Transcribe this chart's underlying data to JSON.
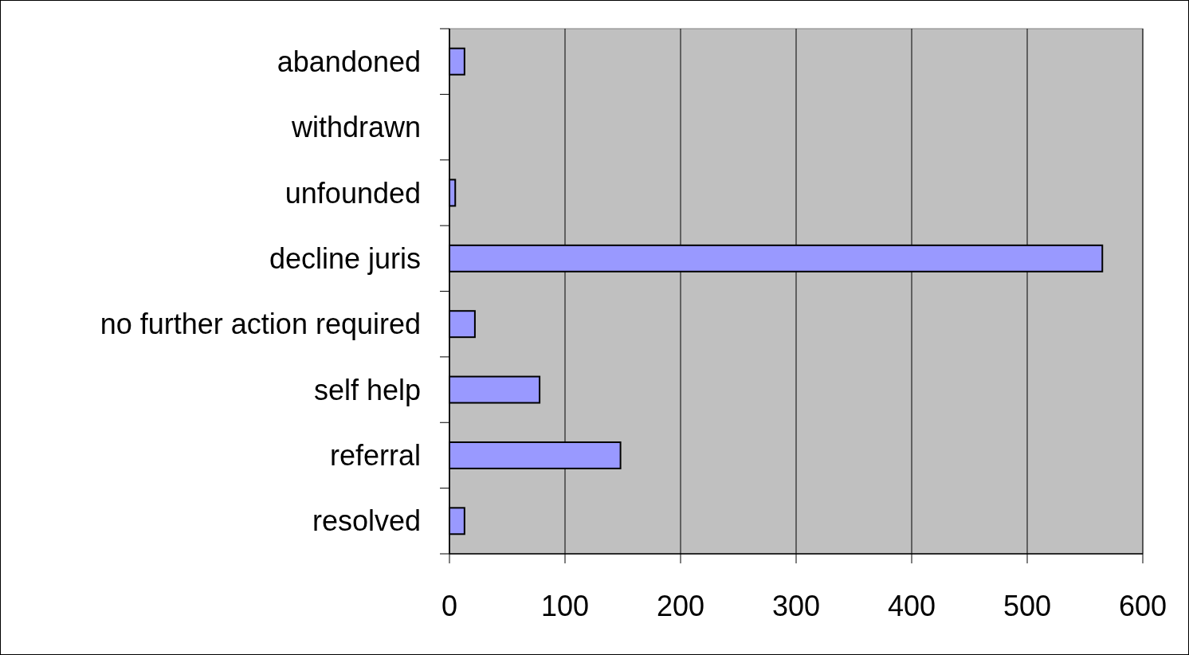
{
  "chart_data": {
    "type": "bar",
    "orientation": "horizontal",
    "categories": [
      "abandoned",
      "withdrawn",
      "unfounded",
      "decline juris",
      "no further action required",
      "self help",
      "referral",
      "resolved"
    ],
    "values": [
      13,
      0,
      5,
      565,
      22,
      78,
      148,
      13
    ],
    "color": "#9999ff",
    "xlim": [
      0,
      600
    ],
    "xticks": [
      0,
      100,
      200,
      300,
      400,
      500,
      600
    ],
    "grid": "x"
  }
}
